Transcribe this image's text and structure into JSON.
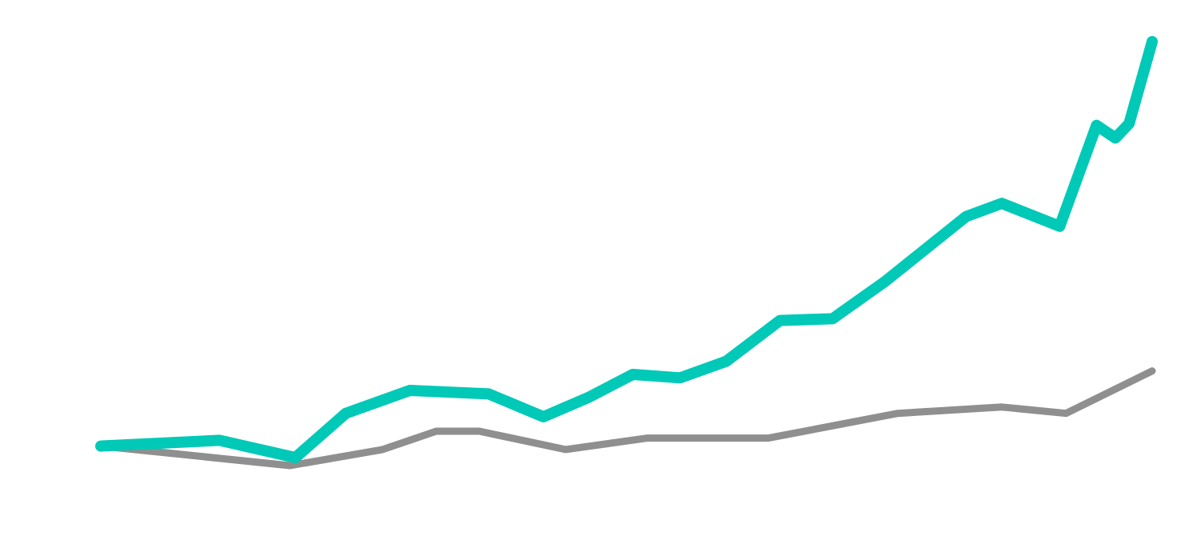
{
  "chart_data": {
    "type": "line",
    "title": "",
    "xlabel": "",
    "ylabel": "",
    "grid": false,
    "legend": "none",
    "xlim": [
      0,
      1
    ],
    "ylim": [
      0,
      1
    ],
    "series": [
      {
        "color": "#00c9b7",
        "points": [
          [
            0.0,
            0.034
          ],
          [
            0.113,
            0.044
          ],
          [
            0.185,
            0.014
          ],
          [
            0.233,
            0.091
          ],
          [
            0.294,
            0.131
          ],
          [
            0.369,
            0.125
          ],
          [
            0.421,
            0.085
          ],
          [
            0.464,
            0.119
          ],
          [
            0.506,
            0.159
          ],
          [
            0.551,
            0.153
          ],
          [
            0.595,
            0.182
          ],
          [
            0.646,
            0.253
          ],
          [
            0.696,
            0.256
          ],
          [
            0.746,
            0.321
          ],
          [
            0.823,
            0.434
          ],
          [
            0.857,
            0.457
          ],
          [
            0.912,
            0.417
          ],
          [
            0.947,
            0.593
          ],
          [
            0.965,
            0.571
          ],
          [
            0.978,
            0.596
          ],
          [
            1.0,
            0.739
          ]
        ]
      },
      {
        "color": "#8f8f8f",
        "points": [
          [
            0.0,
            0.034
          ],
          [
            0.18,
            0.0
          ],
          [
            0.268,
            0.028
          ],
          [
            0.319,
            0.06
          ],
          [
            0.36,
            0.06
          ],
          [
            0.442,
            0.028
          ],
          [
            0.52,
            0.048
          ],
          [
            0.635,
            0.048
          ],
          [
            0.758,
            0.091
          ],
          [
            0.857,
            0.102
          ],
          [
            0.918,
            0.091
          ],
          [
            1.0,
            0.165
          ]
        ]
      }
    ]
  }
}
